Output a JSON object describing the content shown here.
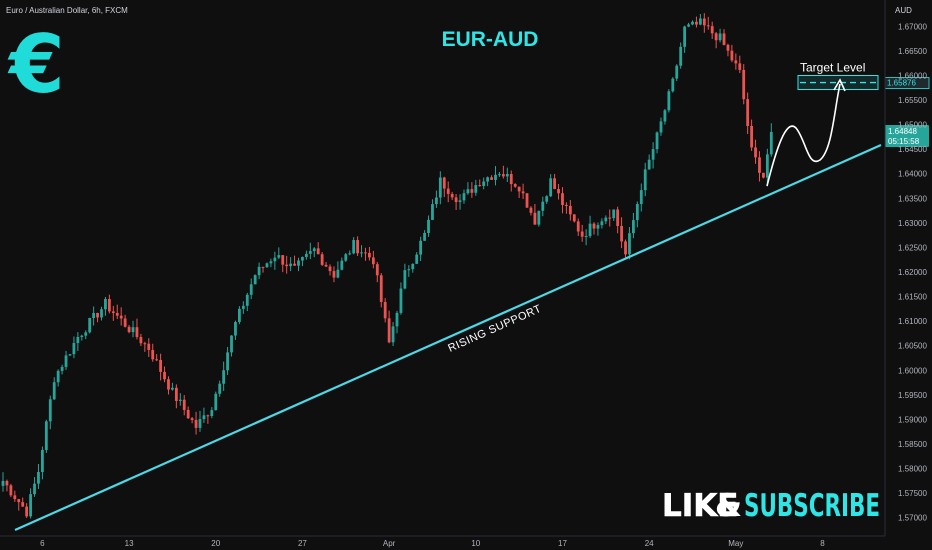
{
  "header": {
    "symbol_title": "Euro / Australian Dollar, 6h, FXCM",
    "center_title": "EUR-AUD",
    "currency_unit": "AUD",
    "logo_glyph": "€"
  },
  "annotations": {
    "support_label": "RISING SUPPORT",
    "target_label": "Target Level",
    "target_price": "1.65876",
    "current_price": "1.64848",
    "countdown": "05:15:58"
  },
  "cta": {
    "like": "LIKE",
    "amp": "&",
    "subscribe": "SUBSCRIBE"
  },
  "colors": {
    "up": "#26a69a",
    "down": "#ef5350",
    "support": "#4dd8e6",
    "accent": "#2ee6e6",
    "background": "#0f0f10"
  },
  "chart_data": {
    "type": "candlestick",
    "title": "EUR-AUD",
    "ylabel": "AUD",
    "ylim": [
      1.5675,
      1.6725
    ],
    "y_ticks": [
      "1.67000",
      "1.66500",
      "1.66000",
      "1.65500",
      "1.65000",
      "1.64500",
      "1.64000",
      "1.63500",
      "1.63000",
      "1.62500",
      "1.62000",
      "1.61500",
      "1.61000",
      "1.60500",
      "1.60000",
      "1.59500",
      "1.59000",
      "1.58500",
      "1.58000",
      "1.57500",
      "1.57000"
    ],
    "x_ticks": [
      "6",
      "13",
      "20",
      "27",
      "Apr",
      "10",
      "17",
      "24",
      "May",
      "8"
    ],
    "anchor_closes": [
      [
        0,
        1.5775
      ],
      [
        6,
        1.5712
      ],
      [
        9,
        1.5795
      ],
      [
        13,
        1.5985
      ],
      [
        19,
        1.6068
      ],
      [
        26,
        1.6135
      ],
      [
        32,
        1.6085
      ],
      [
        37,
        1.6045
      ],
      [
        43,
        1.5955
      ],
      [
        49,
        1.5885
      ],
      [
        53,
        1.5925
      ],
      [
        59,
        1.6095
      ],
      [
        64,
        1.6195
      ],
      [
        69,
        1.6235
      ],
      [
        74,
        1.6205
      ],
      [
        79,
        1.6245
      ],
      [
        84,
        1.6195
      ],
      [
        89,
        1.6255
      ],
      [
        94,
        1.6225
      ],
      [
        98,
        1.6055
      ],
      [
        102,
        1.6195
      ],
      [
        107,
        1.6275
      ],
      [
        111,
        1.6385
      ],
      [
        116,
        1.6345
      ],
      [
        121,
        1.6385
      ],
      [
        126,
        1.6405
      ],
      [
        131,
        1.6375
      ],
      [
        135,
        1.6305
      ],
      [
        139,
        1.6385
      ],
      [
        143,
        1.6325
      ],
      [
        147,
        1.6275
      ],
      [
        151,
        1.6305
      ],
      [
        155,
        1.6325
      ],
      [
        158,
        1.6235
      ],
      [
        162,
        1.6375
      ],
      [
        166,
        1.6475
      ],
      [
        170,
        1.6585
      ],
      [
        173,
        1.6695
      ],
      [
        177,
        1.6705
      ],
      [
        182,
        1.6675
      ],
      [
        187,
        1.6605
      ],
      [
        190,
        1.6445
      ],
      [
        193,
        1.6395
      ],
      [
        195,
        1.6485
      ]
    ],
    "support_line": {
      "start": [
        1.5685,
        "6"
      ],
      "end": [
        1.6445,
        "8"
      ]
    },
    "target_level": 1.65876,
    "current_price": 1.64848
  }
}
